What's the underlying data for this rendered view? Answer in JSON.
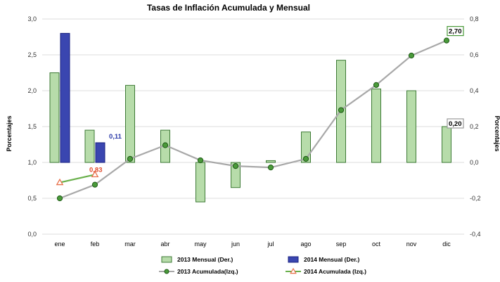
{
  "chart_data": {
    "type": "bar",
    "title": "Tasas de Inflación Acumulada y Mensual",
    "ylabel_left": "Porcentajes",
    "ylabel_right": "Porcentajes",
    "ylim_left": [
      0,
      3.0
    ],
    "ylim_right": [
      -0.4,
      0.8
    ],
    "yticks_left": [
      "0,0",
      "0,5",
      "1,0",
      "1,5",
      "2,0",
      "2,5",
      "3,0"
    ],
    "yticks_right": [
      "-0,4",
      "-0,2",
      "0,0",
      "0,2",
      "0,4",
      "0,6",
      "0,8"
    ],
    "grid": true,
    "legend_position": "bottom",
    "categories": [
      "ene",
      "feb",
      "mar",
      "abr",
      "may",
      "jun",
      "jul",
      "ago",
      "sep",
      "oct",
      "nov",
      "dic"
    ],
    "series": [
      {
        "name": "2013 Mensual (Der.)",
        "kind": "bar",
        "axis": "right",
        "color": "#b7dcaa",
        "edge": "#3d7a35",
        "values": [
          0.5,
          0.18,
          0.43,
          0.18,
          -0.22,
          -0.14,
          0.01,
          0.17,
          0.57,
          0.41,
          0.4,
          0.2
        ]
      },
      {
        "name": "2014 Mensual (Der.)",
        "kind": "bar",
        "axis": "right",
        "color": "#3a46b0",
        "edge": "#1a2280",
        "values": [
          0.72,
          0.11,
          null,
          null,
          null,
          null,
          null,
          null,
          null,
          null,
          null,
          null
        ]
      },
      {
        "name": "2013 Acumulada(Izq.)",
        "kind": "line",
        "axis": "left",
        "color": "#a8a8a8",
        "marker": "#4a9a3a",
        "values": [
          0.5,
          0.69,
          1.05,
          1.24,
          1.03,
          0.95,
          0.93,
          1.05,
          1.73,
          2.08,
          2.49,
          2.7
        ]
      },
      {
        "name": "2014 Acumulada (Izq.)",
        "kind": "line",
        "axis": "left",
        "color": "#6ab04c",
        "marker": "#e8704a",
        "values": [
          0.72,
          0.83,
          null,
          null,
          null,
          null,
          null,
          null,
          null,
          null,
          null,
          null
        ]
      }
    ],
    "data_labels": [
      {
        "text": "0,11",
        "color": "#2b3aa8",
        "boxed": false
      },
      {
        "text": "0,83",
        "color": "#e04a2a",
        "boxed": false
      },
      {
        "text": "0,20",
        "color": "#000000",
        "boxed": true
      },
      {
        "text": "2,70",
        "color": "#000000",
        "boxed": true
      }
    ]
  }
}
